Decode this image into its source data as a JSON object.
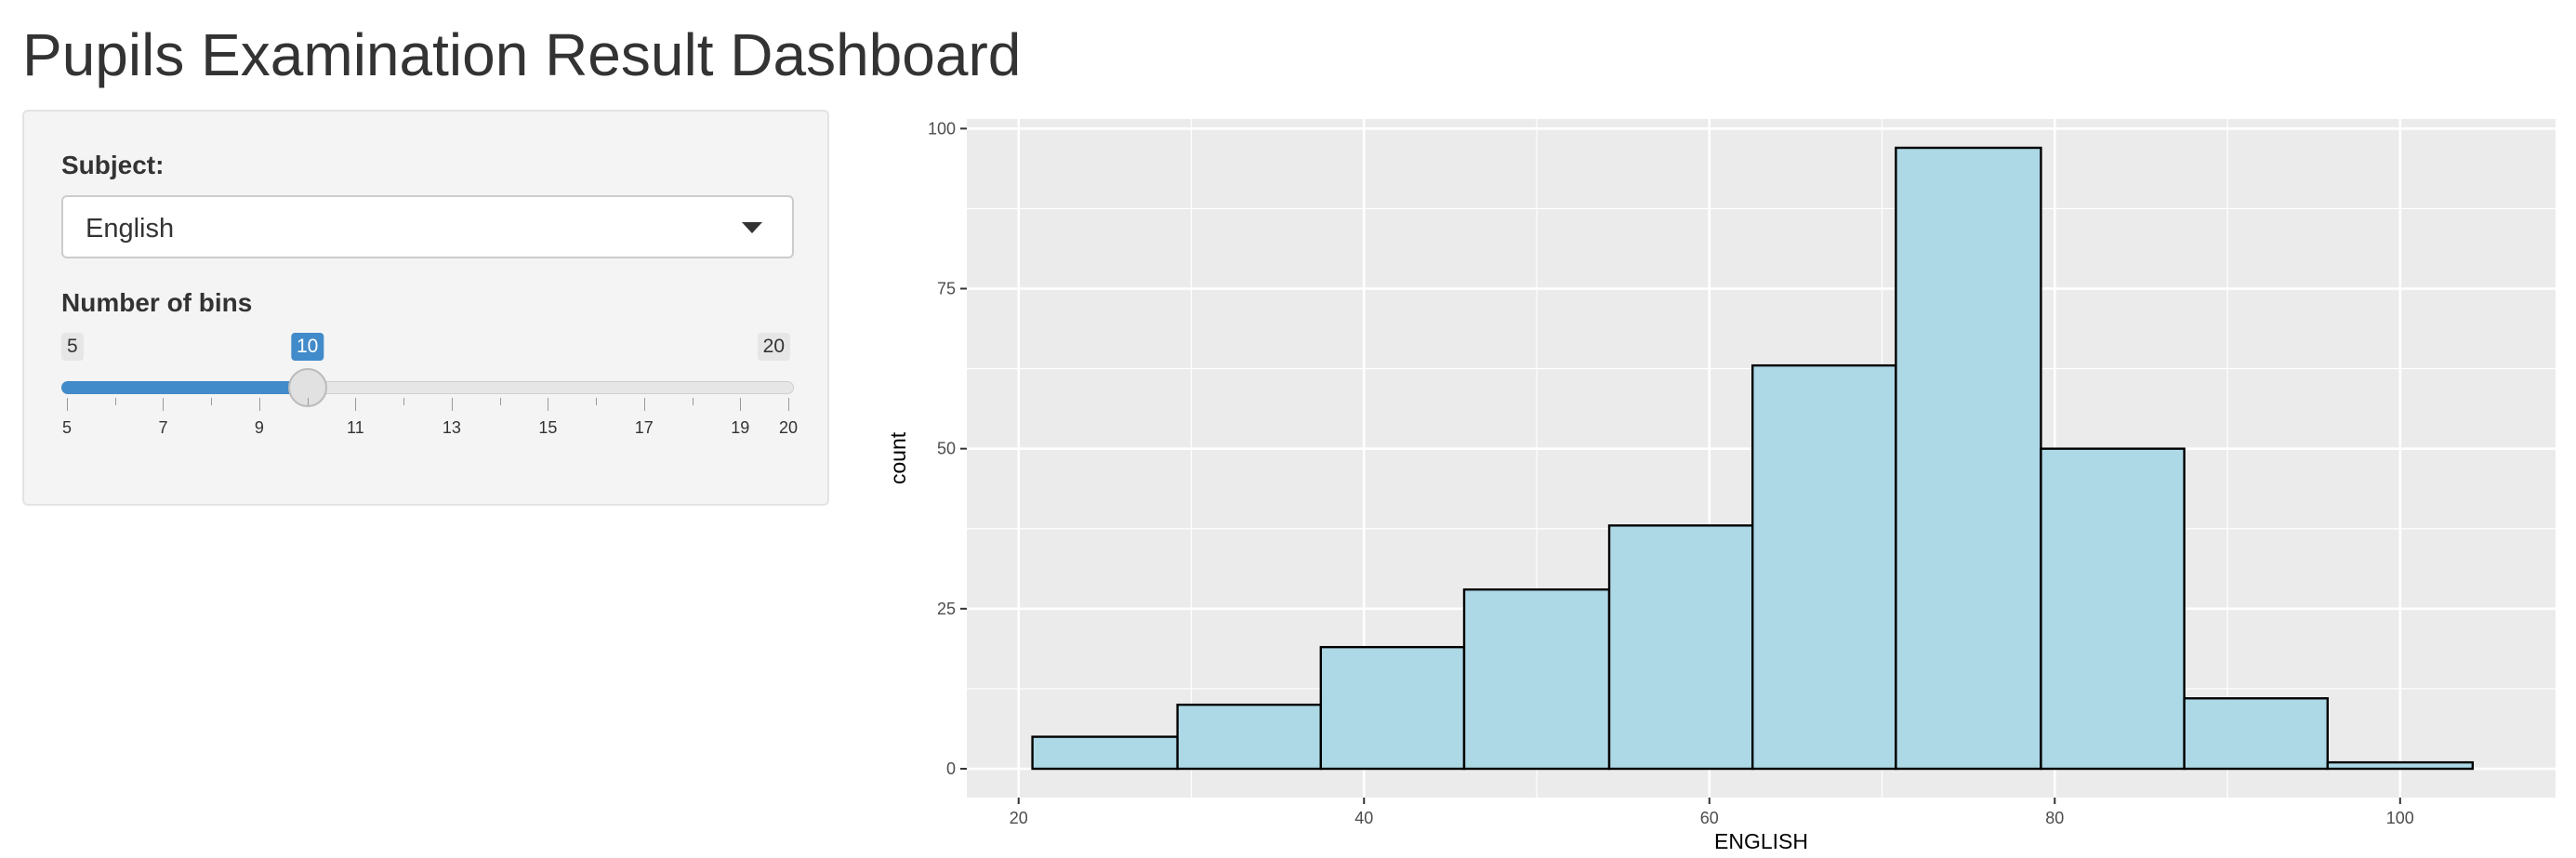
{
  "page": {
    "title": "Pupils Examination Result Dashboard"
  },
  "sidebar": {
    "subject": {
      "label": "Subject:",
      "selected": "English"
    },
    "bins": {
      "label": "Number of bins",
      "min": 5,
      "max": 20,
      "value": 10,
      "min_label": "5",
      "max_label": "20",
      "value_label": "10",
      "tick_labels": [
        "5",
        "7",
        "9",
        "11",
        "13",
        "15",
        "17",
        "19",
        "20"
      ]
    }
  },
  "chart_data": {
    "type": "bar",
    "subtype": "histogram",
    "xlabel": "ENGLISH",
    "ylabel": "count",
    "xlim": [
      17,
      109
    ],
    "ylim": [
      -4.5,
      101.5
    ],
    "x_ticks": [
      20,
      40,
      60,
      80,
      100
    ],
    "y_ticks": [
      0,
      25,
      50,
      75,
      100
    ],
    "x_tick_labels": [
      "20",
      "40",
      "60",
      "80",
      "100"
    ],
    "y_tick_labels": [
      "0",
      "25",
      "50",
      "75",
      "100"
    ],
    "bins": [
      {
        "x0": 20.8,
        "x1": 29.2,
        "count": 5
      },
      {
        "x0": 29.2,
        "x1": 37.5,
        "count": 10
      },
      {
        "x0": 37.5,
        "x1": 45.8,
        "count": 19
      },
      {
        "x0": 45.8,
        "x1": 54.2,
        "count": 28
      },
      {
        "x0": 54.2,
        "x1": 62.5,
        "count": 38
      },
      {
        "x0": 62.5,
        "x1": 70.8,
        "count": 63
      },
      {
        "x0": 70.8,
        "x1": 79.2,
        "count": 97
      },
      {
        "x0": 79.2,
        "x1": 87.5,
        "count": 50
      },
      {
        "x0": 87.5,
        "x1": 95.8,
        "count": 11
      },
      {
        "x0": 95.8,
        "x1": 104.2,
        "count": 1
      }
    ],
    "fill_color": "#add8e6",
    "edge_color": "#000000",
    "panel_background": "#ebebeb",
    "grid": true,
    "grid_color": "#ffffff"
  }
}
